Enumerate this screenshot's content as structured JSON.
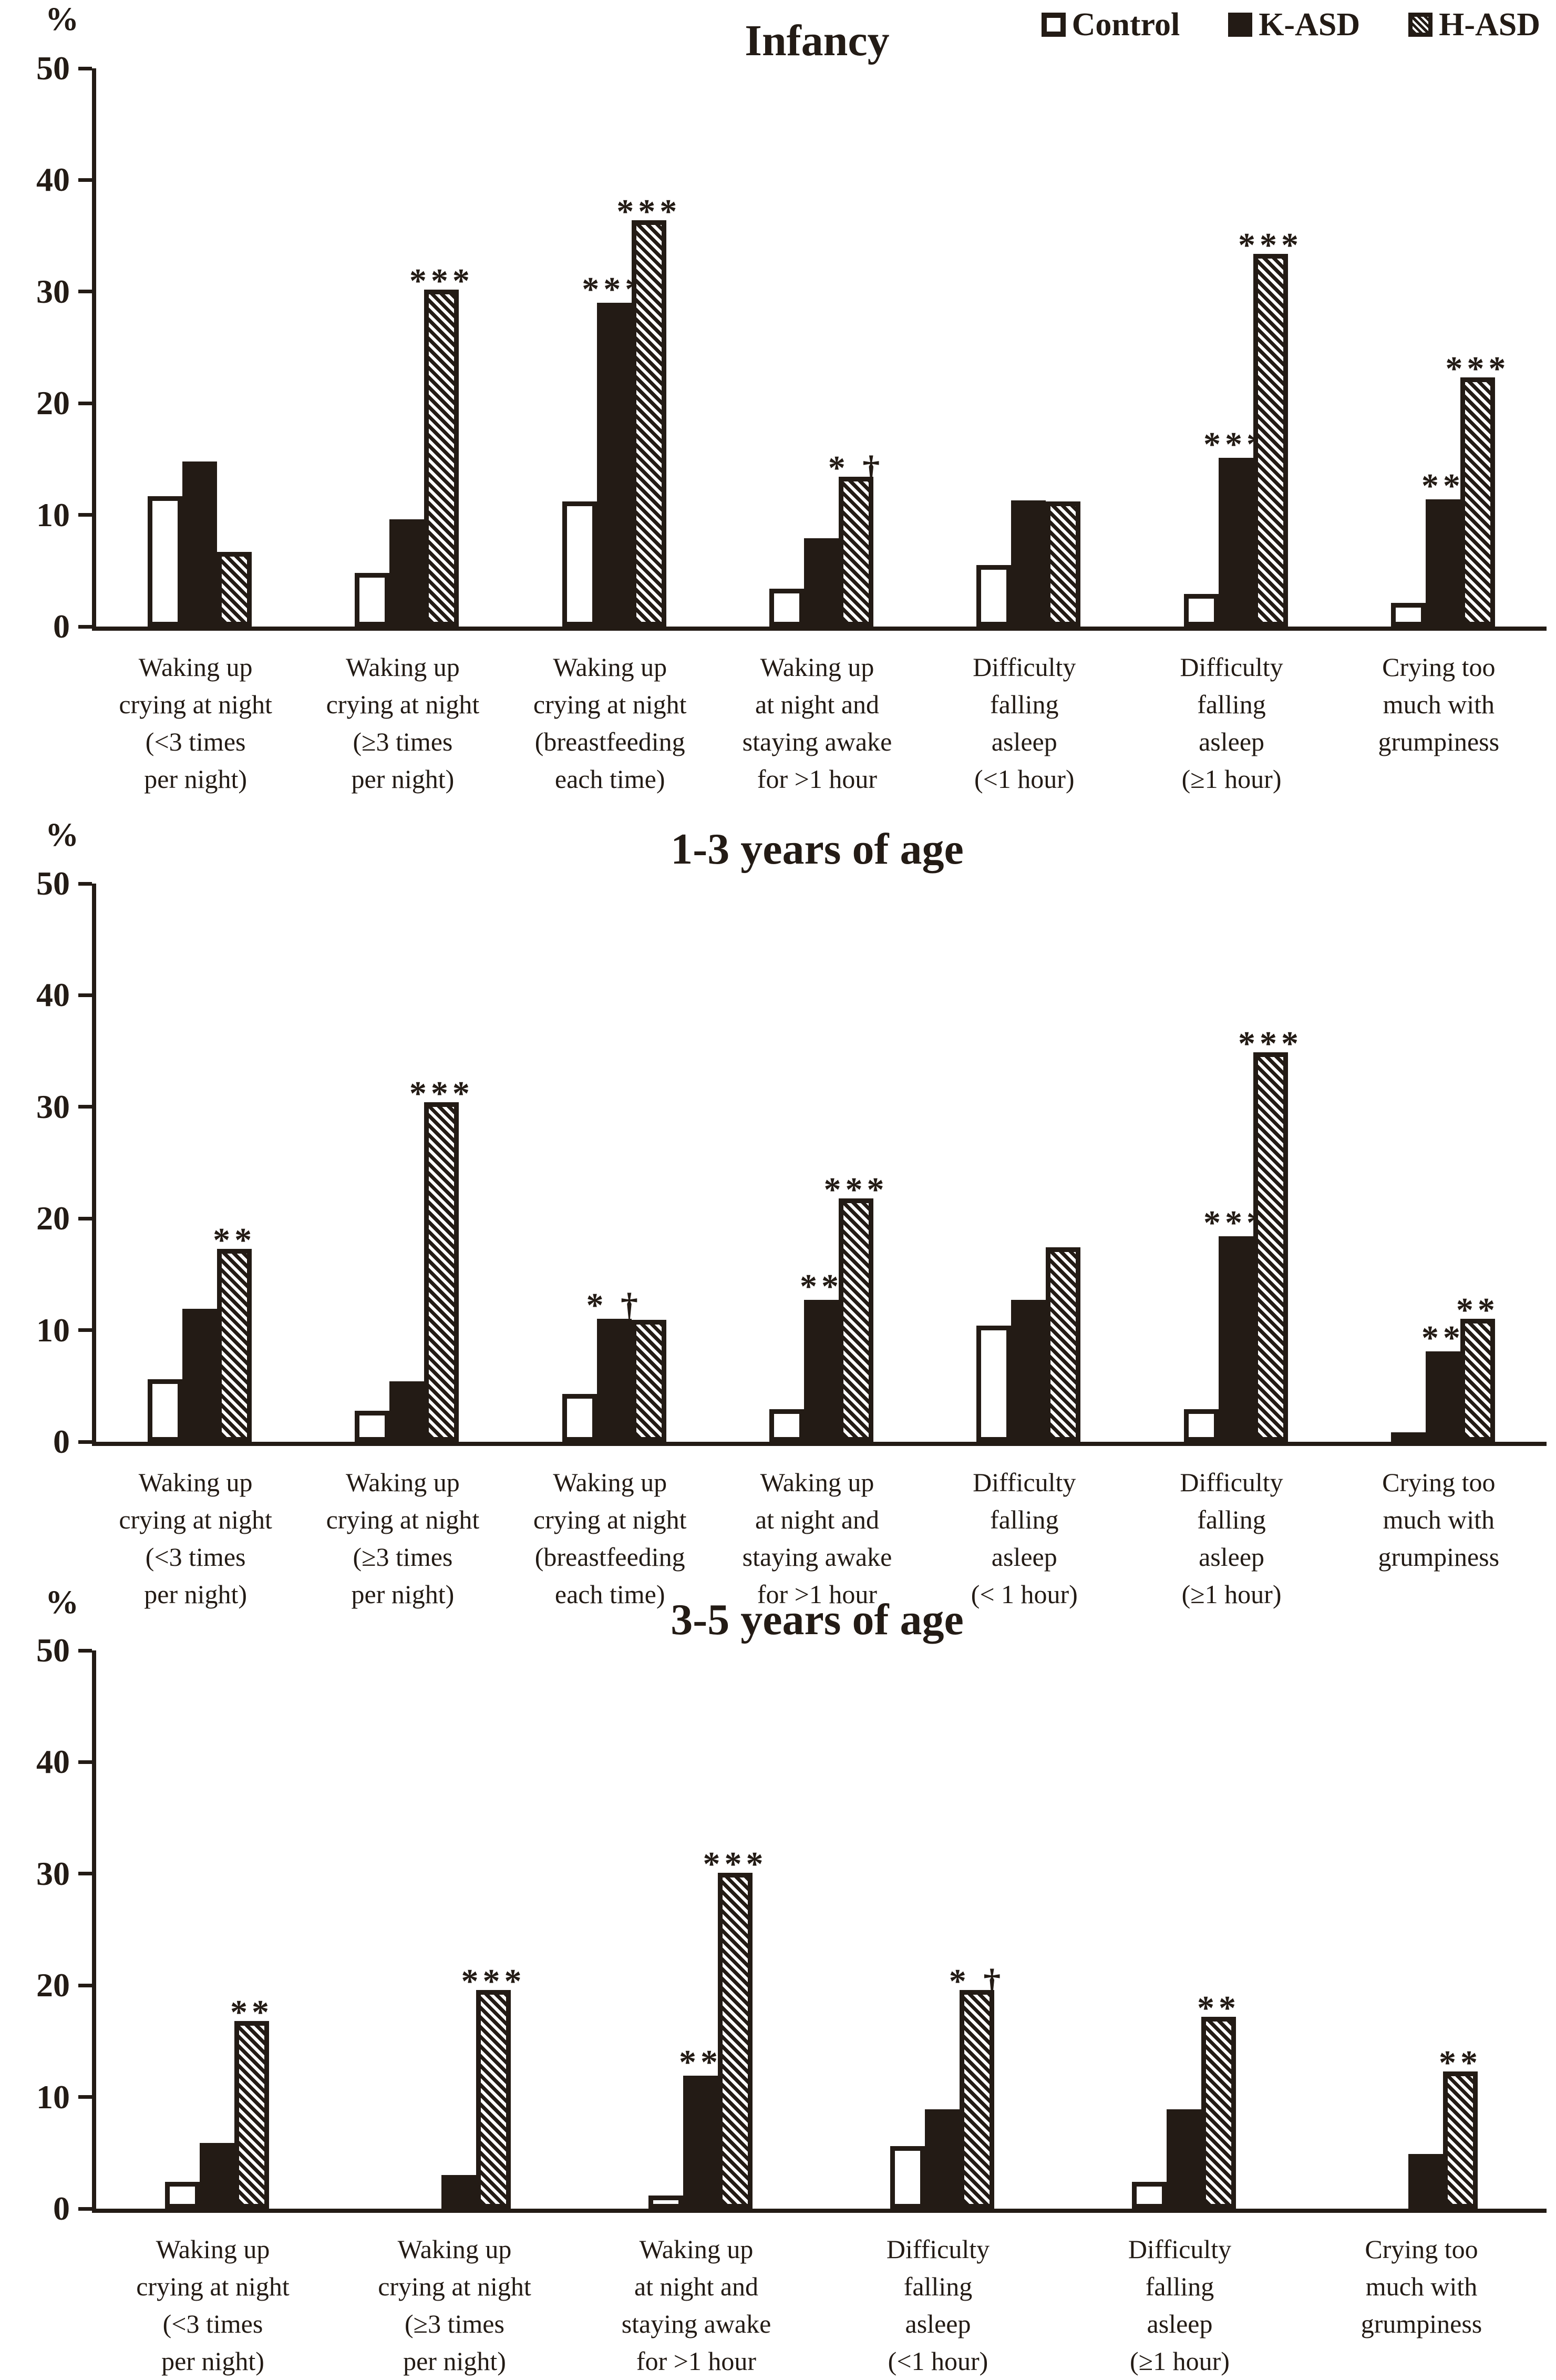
{
  "figure": {
    "background": "#ffffff",
    "ink_color": "#231b15"
  },
  "legend": {
    "items": [
      {
        "label": "Control",
        "swatch": "open-square"
      },
      {
        "label": "K-ASD",
        "swatch": "solid-square"
      },
      {
        "label": "H-ASD",
        "swatch": "hatched-square"
      }
    ]
  },
  "y_axis": {
    "unit_label": "%",
    "tick_labels": [
      "0",
      "10",
      "20",
      "30",
      "40",
      "50"
    ],
    "max": 50
  },
  "chart_data": [
    {
      "type": "bar",
      "title": "Infancy",
      "ylabel": "%",
      "ylim": [
        0,
        50
      ],
      "grid": false,
      "legend_position": "top-right",
      "categories": [
        [
          "Waking up",
          "crying at night",
          "(<3 times",
          "per night)"
        ],
        [
          "Waking up",
          "crying at night",
          "(≥3 times",
          "per night)"
        ],
        [
          "Waking up",
          "crying at night",
          "(breastfeeding",
          "each time)"
        ],
        [
          "Waking up",
          "at night and",
          "staying awake",
          "for >1 hour"
        ],
        [
          "Difficulty",
          "falling",
          "asleep",
          "(<1 hour)"
        ],
        [
          "Difficulty",
          "falling",
          "asleep",
          "(≥1 hour)"
        ],
        [
          "Crying too",
          "much with",
          "grumpiness"
        ]
      ],
      "series": [
        {
          "name": "Control",
          "values": [
            11.7,
            4.8,
            11.2,
            3.4,
            5.5,
            2.9,
            2.1
          ]
        },
        {
          "name": "K-ASD",
          "values": [
            14.8,
            9.6,
            29.0,
            7.9,
            11.3,
            15.1,
            11.4
          ]
        },
        {
          "name": "H-ASD",
          "values": [
            6.7,
            30.2,
            36.4,
            13.4,
            11.2,
            33.4,
            22.3
          ]
        }
      ],
      "significance": {
        "K-ASD": [
          "",
          "",
          "***",
          "",
          "",
          "***",
          "**"
        ],
        "H-ASD": [
          "",
          "***",
          "***",
          "* †",
          "",
          "***",
          "***"
        ]
      }
    },
    {
      "type": "bar",
      "title": "1-3 years of age",
      "ylabel": "%",
      "ylim": [
        0,
        50
      ],
      "grid": false,
      "categories": [
        [
          "Waking up",
          "crying at night",
          "(<3 times",
          "per night)"
        ],
        [
          "Waking up",
          "crying at night",
          "(≥3 times",
          "per night)"
        ],
        [
          "Waking up",
          "crying at night",
          "(breastfeeding",
          "each time)"
        ],
        [
          "Waking up",
          "at night and",
          "staying awake",
          "for >1 hour"
        ],
        [
          "Difficulty",
          "falling",
          "asleep",
          "(< 1 hour)"
        ],
        [
          "Difficulty",
          "falling",
          "asleep",
          "(≥1 hour)"
        ],
        [
          "Crying too",
          "much with",
          "grumpiness"
        ]
      ],
      "series": [
        {
          "name": "Control",
          "values": [
            5.6,
            2.8,
            4.3,
            2.9,
            10.4,
            2.9,
            0.7
          ]
        },
        {
          "name": "K-ASD",
          "values": [
            11.9,
            5.4,
            11.0,
            12.7,
            12.7,
            18.4,
            8.1
          ]
        },
        {
          "name": "H-ASD",
          "values": [
            17.3,
            30.4,
            10.9,
            21.8,
            17.4,
            34.9,
            11.0
          ]
        }
      ],
      "significance": {
        "K-ASD": [
          "",
          "",
          "* †",
          "**",
          "",
          "***",
          "**"
        ],
        "H-ASD": [
          "**",
          "***",
          "",
          "***",
          "",
          "***",
          "**"
        ]
      }
    },
    {
      "type": "bar",
      "title": "3-5 years of age",
      "ylabel": "%",
      "ylim": [
        0,
        50
      ],
      "grid": false,
      "categories": [
        [
          "Waking up",
          "crying at night",
          "(<3 times",
          "per night)"
        ],
        [
          "Waking up",
          "crying at night",
          "(≥3 times",
          "per night)"
        ],
        [
          "Waking up",
          "at night and",
          "staying awake",
          "for >1 hour"
        ],
        [
          "Difficulty",
          "falling",
          "asleep",
          "(<1 hour)"
        ],
        [
          "Difficulty",
          "falling",
          "asleep",
          "(≥1 hour)"
        ],
        [
          "Crying too",
          "much with",
          "grumpiness"
        ]
      ],
      "series": [
        {
          "name": "Control",
          "values": [
            2.4,
            0,
            1.2,
            5.6,
            2.4,
            0
          ]
        },
        {
          "name": "K-ASD",
          "values": [
            5.9,
            3.0,
            11.9,
            8.9,
            8.9,
            4.9
          ]
        },
        {
          "name": "H-ASD",
          "values": [
            16.8,
            19.6,
            30.1,
            19.6,
            17.2,
            12.3
          ]
        }
      ],
      "significance": {
        "K-ASD": [
          "",
          "",
          "**",
          "",
          "",
          ""
        ],
        "H-ASD": [
          "**",
          "***",
          "***",
          "* †",
          "**",
          "**"
        ]
      }
    }
  ]
}
